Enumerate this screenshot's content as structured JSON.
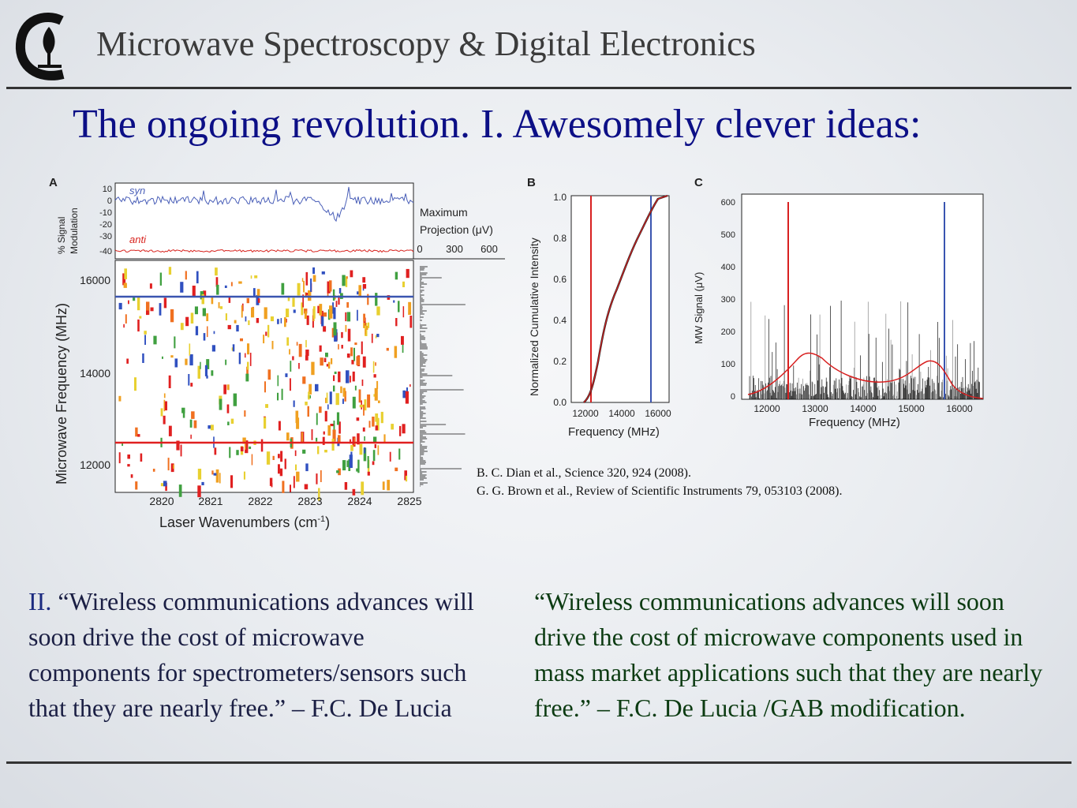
{
  "header": {
    "title": "Microwave Spectroscopy & Digital Electronics"
  },
  "slide": {
    "title": "The ongoing revolution. I. Awesomely clever ideas:"
  },
  "figure_a": {
    "letter": "A",
    "top_ylabel_1": "% Signal",
    "top_ylabel_2": "Modulation",
    "top_yticks": [
      "10",
      "0",
      "-10",
      "-20",
      "-30",
      "-40"
    ],
    "trace_syn": "syn",
    "trace_anti": "anti",
    "proj_label_1": "Maximum",
    "proj_label_2": "Projection (μV)",
    "proj_ticks": [
      "0",
      "300",
      "600"
    ],
    "ylabel": "Microwave Frequency (MHz)",
    "yticks": [
      "16000",
      "14000",
      "12000"
    ],
    "xticks": [
      "2820",
      "2821",
      "2822",
      "2823",
      "2824",
      "2825"
    ],
    "xlabel": "Laser Wavenumbers (cm",
    "xlabel_sup": "-1",
    "xlabel_end": ")",
    "colors": {
      "syn": "#4a5fb8",
      "anti": "#d8241f",
      "blue_line": "#3a55b0",
      "red_line": "#e02020"
    }
  },
  "figure_b": {
    "letter": "B",
    "ylabel": "Normalized Cumulative Intensity",
    "yticks": [
      "1.0",
      "0.8",
      "0.6",
      "0.4",
      "0.2",
      "0.0"
    ],
    "xticks": [
      "12000",
      "14000",
      "16000"
    ],
    "xlabel": "Frequency (MHz)"
  },
  "figure_c": {
    "letter": "C",
    "ylabel": "MW Signal (μV)",
    "yticks": [
      "600",
      "500",
      "400",
      "300",
      "200",
      "100",
      "0"
    ],
    "xticks": [
      "12000",
      "13000",
      "14000",
      "15000",
      "16000"
    ],
    "xlabel": "Frequency (MHz)"
  },
  "references": {
    "line1": "B. C. Dian et al., Science 320, 924 (2008).",
    "line2": "G. G. Brown et al., Review of Scientific Instruments 79, 053103 (2008)."
  },
  "quotes": {
    "left_prefix": "II. ",
    "left_text": "“Wireless communications advances will soon drive the cost of microwave components for spectrometers/sensors such that they are nearly free.” – F.C. De Lucia",
    "right_text": "“Wireless communications advances will soon drive the cost of microwave components used in mass market applications such that they are nearly free.” – F.C. De Lucia /GAB modification."
  }
}
